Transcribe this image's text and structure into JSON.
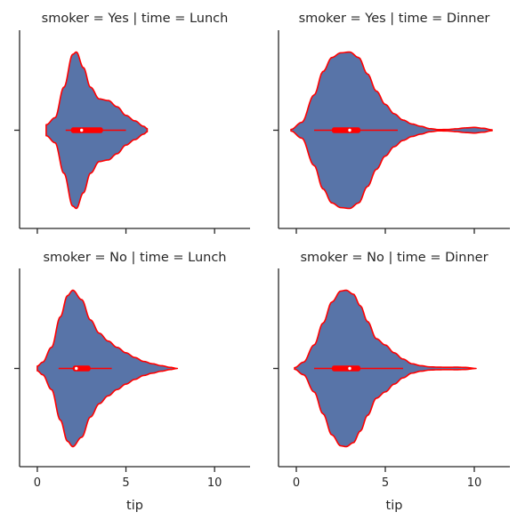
{
  "chart_data": {
    "type": "violin",
    "xlabel": "tip",
    "xlim": [
      -1,
      12
    ],
    "xticks": [
      0,
      5,
      10
    ],
    "colors": {
      "fill": "#5874a8",
      "edge": "#ff0000",
      "median": "#ffffff"
    },
    "panels": [
      {
        "id": "yes-lunch",
        "title": "smoker = Yes | time = Lunch",
        "stats": {
          "whisker_low": 1.6,
          "q1": 1.9,
          "median": 2.5,
          "q3": 3.7,
          "whisker_high": 5.0,
          "min": 0.5,
          "max": 6.2
        },
        "density_profile": [
          [
            0.5,
            0.07
          ],
          [
            1.0,
            0.16
          ],
          [
            1.5,
            0.55
          ],
          [
            2.0,
            0.97
          ],
          [
            2.2,
            1.0
          ],
          [
            2.6,
            0.8
          ],
          [
            3.0,
            0.55
          ],
          [
            3.5,
            0.4
          ],
          [
            4.0,
            0.38
          ],
          [
            4.5,
            0.3
          ],
          [
            5.0,
            0.19
          ],
          [
            5.5,
            0.12
          ],
          [
            6.0,
            0.05
          ],
          [
            6.2,
            0.02
          ]
        ]
      },
      {
        "id": "yes-dinner",
        "title": "smoker = Yes | time = Dinner",
        "stats": {
          "whisker_low": 1.0,
          "q1": 2.0,
          "median": 3.0,
          "q3": 3.6,
          "whisker_high": 5.7,
          "min": -0.3,
          "max": 11.0
        },
        "density_profile": [
          [
            -0.3,
            0.01
          ],
          [
            0.3,
            0.1
          ],
          [
            1.0,
            0.45
          ],
          [
            1.5,
            0.75
          ],
          [
            2.0,
            0.93
          ],
          [
            2.5,
            0.99
          ],
          [
            3.0,
            1.0
          ],
          [
            3.5,
            0.93
          ],
          [
            4.0,
            0.72
          ],
          [
            4.5,
            0.5
          ],
          [
            5.0,
            0.33
          ],
          [
            5.5,
            0.21
          ],
          [
            6.0,
            0.13
          ],
          [
            6.5,
            0.08
          ],
          [
            7.0,
            0.05
          ],
          [
            7.5,
            0.02
          ],
          [
            8.0,
            0.008
          ],
          [
            8.5,
            0.01
          ],
          [
            9.0,
            0.018
          ],
          [
            9.5,
            0.03
          ],
          [
            10.0,
            0.036
          ],
          [
            10.5,
            0.025
          ],
          [
            11.0,
            0.005
          ]
        ]
      },
      {
        "id": "no-lunch",
        "title": "smoker = No | time = Lunch",
        "stats": {
          "whisker_low": 1.2,
          "q1": 2.0,
          "median": 2.2,
          "q3": 3.0,
          "whisker_high": 4.2,
          "min": 0.0,
          "max": 7.9
        },
        "density_profile": [
          [
            0.0,
            0.03
          ],
          [
            0.3,
            0.08
          ],
          [
            0.8,
            0.27
          ],
          [
            1.3,
            0.66
          ],
          [
            1.7,
            0.93
          ],
          [
            2.0,
            1.0
          ],
          [
            2.5,
            0.88
          ],
          [
            3.0,
            0.62
          ],
          [
            3.5,
            0.45
          ],
          [
            4.0,
            0.35
          ],
          [
            4.5,
            0.27
          ],
          [
            5.0,
            0.2
          ],
          [
            5.5,
            0.14
          ],
          [
            6.0,
            0.09
          ],
          [
            6.5,
            0.06
          ],
          [
            7.0,
            0.035
          ],
          [
            7.5,
            0.014
          ],
          [
            7.9,
            0.0
          ]
        ]
      },
      {
        "id": "no-dinner",
        "title": "smoker = No | time = Dinner",
        "stats": {
          "whisker_low": 1.0,
          "q1": 2.0,
          "median": 3.0,
          "q3": 3.6,
          "whisker_high": 6.0,
          "min": -0.1,
          "max": 10.1
        },
        "density_profile": [
          [
            -0.1,
            0.01
          ],
          [
            0.4,
            0.08
          ],
          [
            1.0,
            0.3
          ],
          [
            1.5,
            0.58
          ],
          [
            2.0,
            0.85
          ],
          [
            2.5,
            0.99
          ],
          [
            2.8,
            1.0
          ],
          [
            3.2,
            0.95
          ],
          [
            3.6,
            0.8
          ],
          [
            4.0,
            0.6
          ],
          [
            4.5,
            0.38
          ],
          [
            5.0,
            0.3
          ],
          [
            5.5,
            0.2
          ],
          [
            6.0,
            0.12
          ],
          [
            6.5,
            0.06
          ],
          [
            7.0,
            0.035
          ],
          [
            7.5,
            0.02
          ],
          [
            8.0,
            0.016
          ],
          [
            8.5,
            0.015
          ],
          [
            9.0,
            0.016
          ],
          [
            9.5,
            0.013
          ],
          [
            10.1,
            0.0
          ]
        ]
      }
    ]
  }
}
